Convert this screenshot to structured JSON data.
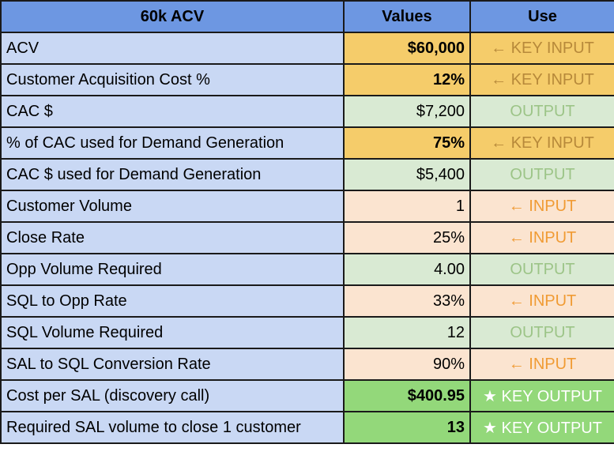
{
  "header": {
    "label": "60k ACV",
    "values": "Values",
    "use": "Use"
  },
  "rows": [
    {
      "label": "ACV",
      "value": "$60,000",
      "use": "← KEY INPUT"
    },
    {
      "label": "Customer Acquisition Cost %",
      "value": "12%",
      "use": "← KEY INPUT"
    },
    {
      "label": "CAC $",
      "value": "$7,200",
      "use": "OUTPUT"
    },
    {
      "label": "% of CAC used for Demand Generation",
      "value": "75%",
      "use": "← KEY INPUT"
    },
    {
      "label": "CAC $ used for Demand Generation",
      "value": "$5,400",
      "use": "OUTPUT"
    },
    {
      "label": "Customer Volume",
      "value": "1",
      "use": "← INPUT"
    },
    {
      "label": "Close Rate",
      "value": "25%",
      "use": "← INPUT"
    },
    {
      "label": "Opp Volume Required",
      "value": "4.00",
      "use": "OUTPUT"
    },
    {
      "label": "SQL to Opp Rate",
      "value": "33%",
      "use": "← INPUT"
    },
    {
      "label": "SQL Volume Required",
      "value": "12",
      "use": "OUTPUT"
    },
    {
      "label": "SAL to SQL Conversion Rate",
      "value": "90%",
      "use": "← INPUT"
    },
    {
      "label": "Cost per SAL (discovery call)",
      "value": "$400.95",
      "use": "★ KEY OUTPUT"
    },
    {
      "label": "Required SAL volume to close 1 customer",
      "value": "13",
      "use": "★ KEY OUTPUT"
    }
  ],
  "colors": {
    "header_bg": "#6d97e2",
    "label_bg": "#c9d8f4",
    "key_input_bg": "#f5cc6a",
    "output_bg": "#d9ead3",
    "input_bg": "#fbe4d0",
    "key_output_bg": "#93d87a"
  }
}
